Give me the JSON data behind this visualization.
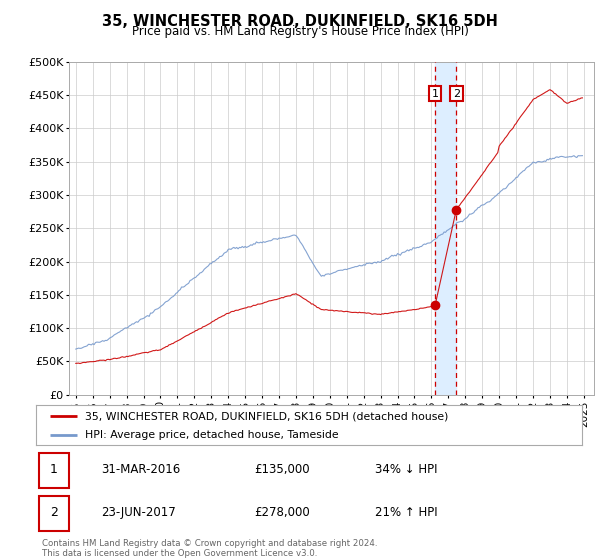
{
  "title": "35, WINCHESTER ROAD, DUKINFIELD, SK16 5DH",
  "subtitle": "Price paid vs. HM Land Registry's House Price Index (HPI)",
  "legend_line1": "35, WINCHESTER ROAD, DUKINFIELD, SK16 5DH (detached house)",
  "legend_line2": "HPI: Average price, detached house, Tameside",
  "footnote": "Contains HM Land Registry data © Crown copyright and database right 2024.\nThis data is licensed under the Open Government Licence v3.0.",
  "table_rows": [
    [
      "1",
      "31-MAR-2016",
      "£135,000",
      "34% ↓ HPI"
    ],
    [
      "2",
      "23-JUN-2017",
      "£278,000",
      "21% ↑ HPI"
    ]
  ],
  "red_color": "#cc0000",
  "blue_color": "#7799cc",
  "highlight_color": "#ddeeff",
  "ylim": [
    0,
    500000
  ],
  "yticks": [
    0,
    50000,
    100000,
    150000,
    200000,
    250000,
    300000,
    350000,
    400000,
    450000,
    500000
  ],
  "t1_year": 2016.21,
  "t2_year": 2017.47,
  "t1_price": 135000,
  "t2_price": 278000
}
